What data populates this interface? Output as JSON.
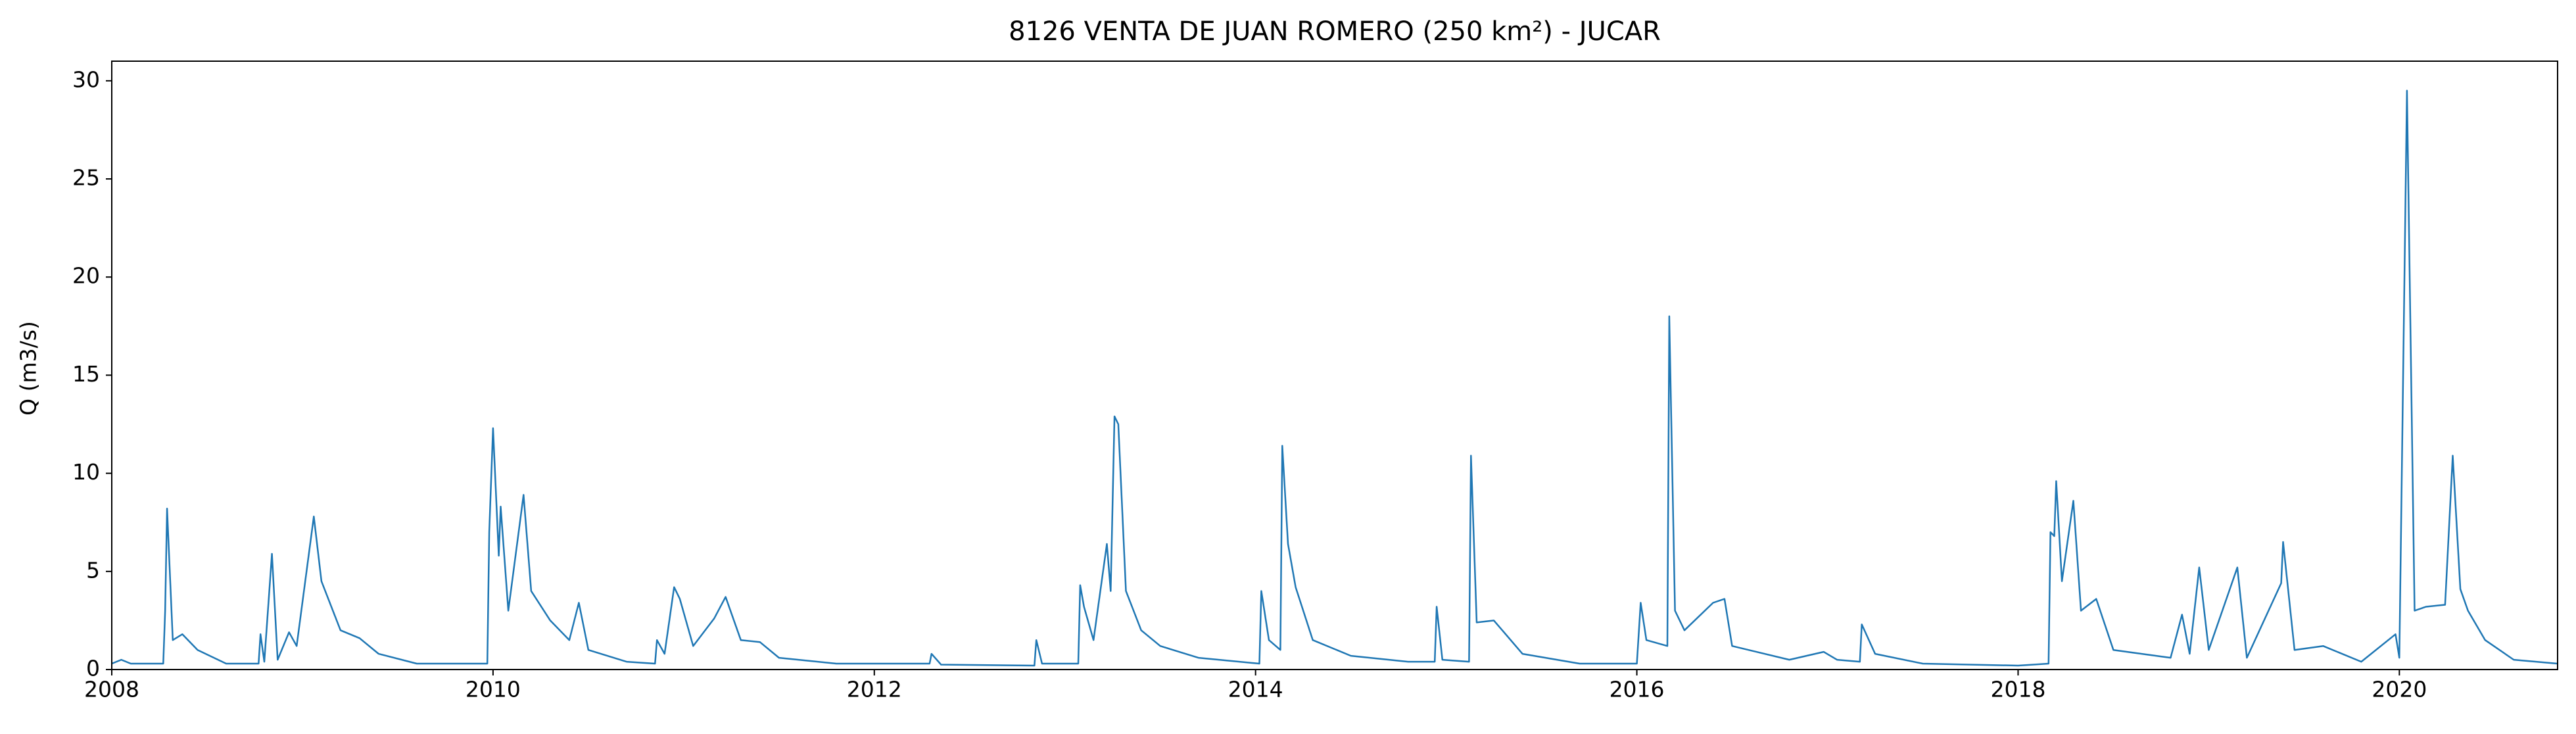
{
  "chart_data": {
    "type": "line",
    "title": "8126 VENTA DE JUAN ROMERO (250 km²) - JUCAR",
    "y_label": "Q (m3/s)",
    "xlim": [
      2008,
      2020.83
    ],
    "xticks": [
      2008,
      2010,
      2012,
      2014,
      2016,
      2018,
      2020
    ],
    "ylim": [
      0,
      31
    ],
    "yticks": [
      0,
      5,
      10,
      15,
      20,
      25,
      30
    ],
    "x": [
      2008,
      2008.05,
      2008.1,
      2008.27,
      2008.28,
      2008.29,
      2008.32,
      2008.37,
      2008.45,
      2008.6,
      2008.77,
      2008.78,
      2008.8,
      2008.84,
      2008.87,
      2008.93,
      2008.97,
      2009.06,
      2009.1,
      2009.2,
      2009.3,
      2009.4,
      2009.6,
      2009.97,
      2009.98,
      2010.0,
      2010.03,
      2010.04,
      2010.08,
      2010.16,
      2010.2,
      2010.3,
      2010.4,
      2010.45,
      2010.5,
      2010.7,
      2010.85,
      2010.86,
      2010.9,
      2010.95,
      2010.98,
      2011.05,
      2011.16,
      2011.22,
      2011.3,
      2011.4,
      2011.5,
      2011.8,
      2012.29,
      2012.3,
      2012.35,
      2012.84,
      2012.85,
      2012.88,
      2013.07,
      2013.08,
      2013.1,
      2013.15,
      2013.22,
      2013.24,
      2013.26,
      2013.28,
      2013.32,
      2013.4,
      2013.5,
      2013.7,
      2014.02,
      2014.03,
      2014.07,
      2014.13,
      2014.14,
      2014.17,
      2014.21,
      2014.3,
      2014.5,
      2014.8,
      2014.94,
      2014.95,
      2014.98,
      2015.12,
      2015.13,
      2015.16,
      2015.25,
      2015.4,
      2015.7,
      2016.0,
      2016.02,
      2016.05,
      2016.16,
      2016.17,
      2016.2,
      2016.25,
      2016.4,
      2016.46,
      2016.5,
      2016.8,
      2016.98,
      2017.05,
      2017.17,
      2017.18,
      2017.25,
      2017.5,
      2018.0,
      2018.16,
      2018.17,
      2018.19,
      2018.2,
      2018.23,
      2018.29,
      2018.33,
      2018.41,
      2018.5,
      2018.8,
      2018.86,
      2018.9,
      2018.95,
      2019.0,
      2019.15,
      2019.2,
      2019.38,
      2019.39,
      2019.45,
      2019.6,
      2019.8,
      2019.98,
      2020.0,
      2020.04,
      2020.08,
      2020.14,
      2020.24,
      2020.28,
      2020.32,
      2020.36,
      2020.45,
      2020.6,
      2020.83
    ],
    "series": [
      {
        "color": "#1f77b4",
        "values": [
          0.3,
          0.5,
          0.3,
          0.3,
          3,
          8.2,
          1.5,
          1.8,
          1.0,
          0.3,
          0.3,
          1.8,
          0.4,
          5.9,
          0.5,
          1.9,
          1.2,
          7.8,
          4.5,
          2,
          1.6,
          0.8,
          0.3,
          0.3,
          7,
          12.3,
          5.8,
          8.3,
          3,
          8.9,
          4,
          2.5,
          1.5,
          3.4,
          1,
          0.4,
          0.3,
          1.5,
          0.8,
          4.2,
          3.6,
          1.2,
          2.6,
          3.7,
          1.5,
          1.4,
          0.6,
          0.3,
          0.3,
          0.8,
          0.25,
          0.2,
          1.5,
          0.3,
          0.3,
          4.3,
          3.2,
          1.5,
          6.4,
          4,
          12.9,
          12.5,
          4,
          2,
          1.2,
          0.6,
          0.3,
          4,
          1.5,
          1,
          11.4,
          6.4,
          4.2,
          1.5,
          0.7,
          0.4,
          0.4,
          3.2,
          0.5,
          0.4,
          10.9,
          2.4,
          2.5,
          0.8,
          0.3,
          0.3,
          3.4,
          1.5,
          1.2,
          18,
          3,
          2,
          3.4,
          3.6,
          1.2,
          0.5,
          0.9,
          0.5,
          0.4,
          2.3,
          0.8,
          0.3,
          0.2,
          0.3,
          7,
          6.8,
          9.6,
          4.5,
          8.6,
          3,
          3.6,
          1,
          0.6,
          2.8,
          0.8,
          5.2,
          1,
          5.2,
          0.6,
          4.4,
          6.5,
          1,
          1.2,
          0.4,
          1.8,
          0.6,
          29.5,
          3,
          3.2,
          3.3,
          10.9,
          4.1,
          3,
          1.5,
          0.5,
          0.3
        ]
      }
    ]
  }
}
